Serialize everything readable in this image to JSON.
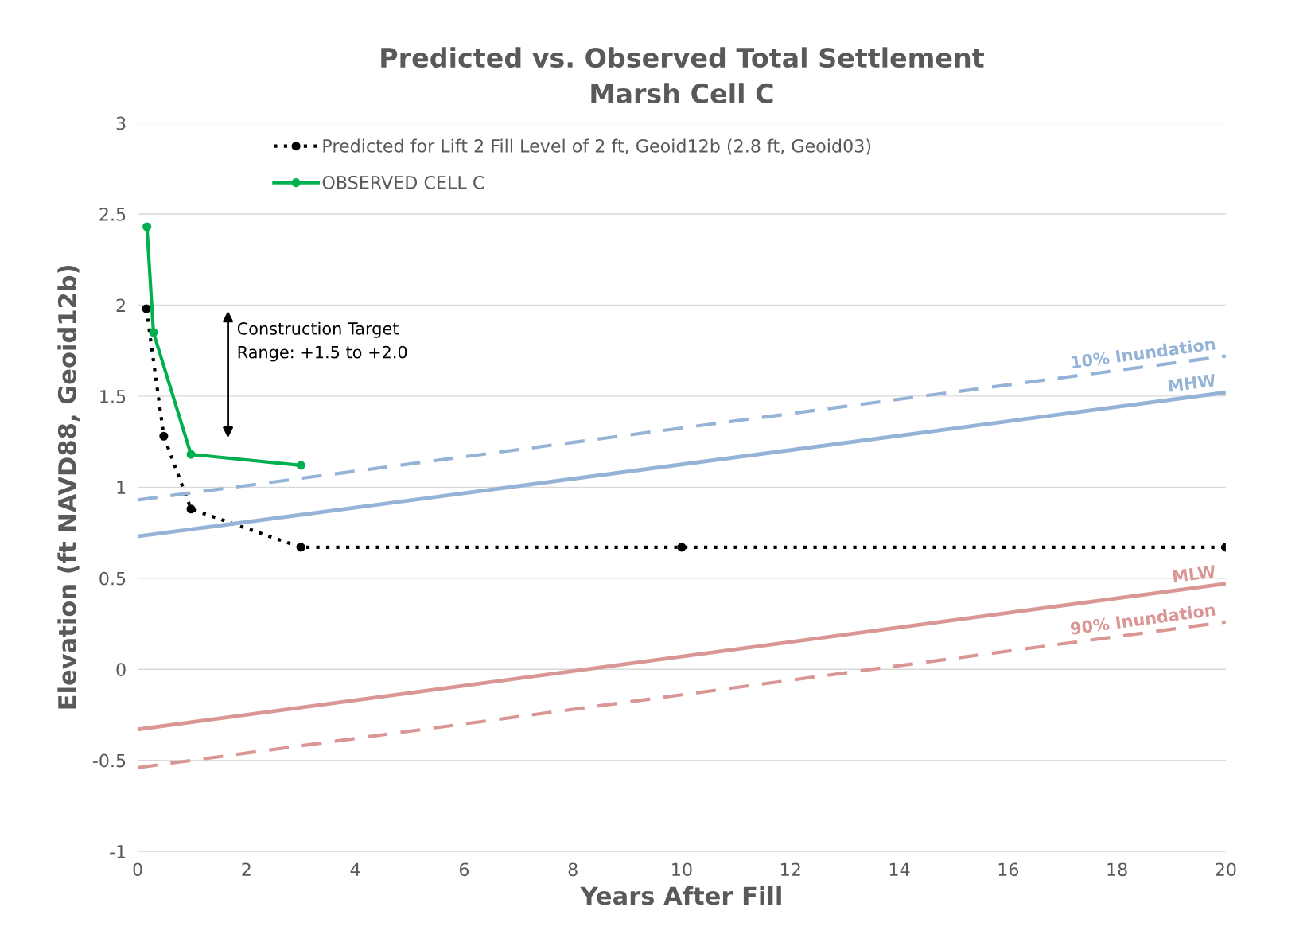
{
  "chart_data": {
    "type": "line",
    "title": "Predicted vs. Observed Total Settlement\nMarsh Cell C",
    "xlabel": "Years After Fill",
    "ylabel": "Elevation (ft NAVD88, Geoid12b)",
    "series": [
      {
        "name": "Predicted for Lift 2 Fill Level of 2 ft, Geoid12b (2.8 ft, Geoid03)",
        "color": "#000000",
        "x": [
          0.16,
          0.48,
          0.98,
          3,
          10,
          20
        ],
        "values": [
          1.98,
          1.28,
          0.88,
          0.67,
          0.67,
          0.67
        ],
        "line_style": "dotted",
        "marker": "circle"
      },
      {
        "name": "OBSERVED CELL C",
        "color": "#00b050",
        "x": [
          0.17,
          0.29,
          0.98,
          3
        ],
        "values": [
          2.43,
          1.85,
          1.18,
          1.12
        ],
        "line_style": "solid",
        "marker": "circle"
      },
      {
        "name": "10% Inundation",
        "color": "#95b3d7",
        "x": [
          0,
          20
        ],
        "values": [
          0.93,
          1.72
        ],
        "line_style": "dashed",
        "marker": "none"
      },
      {
        "name": "MHW",
        "color": "#95b3d7",
        "x": [
          0,
          20
        ],
        "values": [
          0.73,
          1.52
        ],
        "line_style": "solid",
        "marker": "none"
      },
      {
        "name": "MLW",
        "color": "#d99694",
        "x": [
          0,
          20
        ],
        "values": [
          -0.33,
          0.47
        ],
        "line_style": "solid",
        "marker": "none"
      },
      {
        "name": "90% Inundation",
        "color": "#d99694",
        "x": [
          0,
          20
        ],
        "values": [
          -0.54,
          0.26
        ],
        "line_style": "dashed",
        "marker": "none"
      }
    ],
    "annotations": [
      "Construction Target\nRange: +1.5 to +2.0"
    ],
    "xlim": [
      0,
      20
    ],
    "xticks": [
      0,
      2,
      4,
      6,
      8,
      10,
      12,
      14,
      16,
      18,
      20
    ],
    "ylim": [
      -1,
      3
    ],
    "yticks": [
      -1,
      -0.5,
      0,
      0.5,
      1,
      1.5,
      2,
      2.5,
      3
    ],
    "grid": "y",
    "legend": "top"
  }
}
